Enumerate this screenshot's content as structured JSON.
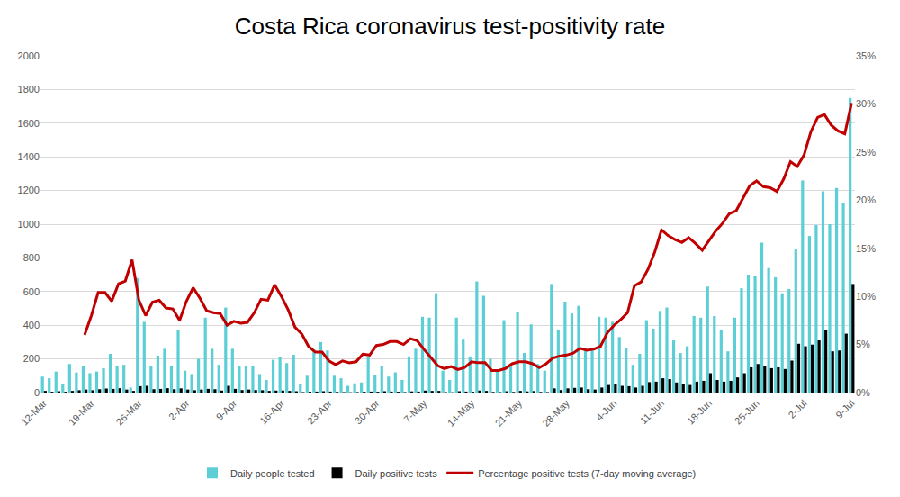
{
  "chart_data": {
    "type": "bar",
    "title": "Costa Rica coronavirus test-positivity rate",
    "categories": [
      "12-Mar",
      null,
      null,
      null,
      null,
      null,
      null,
      "19-Mar",
      null,
      null,
      null,
      null,
      null,
      null,
      "26-Mar",
      null,
      null,
      null,
      null,
      null,
      null,
      "2-Apr",
      null,
      null,
      null,
      null,
      null,
      null,
      "9-Apr",
      null,
      null,
      null,
      null,
      null,
      null,
      "16-Apr",
      null,
      null,
      null,
      null,
      null,
      null,
      "23-Apr",
      null,
      null,
      null,
      null,
      null,
      null,
      "30-Apr",
      null,
      null,
      null,
      null,
      null,
      null,
      "7-May",
      null,
      null,
      null,
      null,
      null,
      null,
      "14-May",
      null,
      null,
      null,
      null,
      null,
      null,
      "21-May",
      null,
      null,
      null,
      null,
      null,
      null,
      "28-May",
      null,
      null,
      null,
      null,
      null,
      null,
      "4-Jun",
      null,
      null,
      null,
      null,
      null,
      null,
      "11-Jun",
      null,
      null,
      null,
      null,
      null,
      null,
      "18-Jun",
      null,
      null,
      null,
      null,
      null,
      null,
      "25-Jun",
      null,
      null,
      null,
      null,
      null,
      null,
      "2-Jul",
      null,
      null,
      null,
      null,
      null,
      null,
      "9-Jul"
    ],
    "series": [
      {
        "name": "Daily people tested",
        "type": "bar",
        "color": "#5ccfd6",
        "values": [
          95,
          85,
          125,
          50,
          170,
          120,
          155,
          115,
          125,
          145,
          230,
          160,
          165,
          30,
          680,
          420,
          155,
          220,
          260,
          160,
          370,
          130,
          110,
          200,
          445,
          260,
          165,
          505,
          260,
          155,
          155,
          155,
          110,
          75,
          195,
          210,
          175,
          225,
          50,
          100,
          255,
          300,
          250,
          100,
          85,
          40,
          55,
          60,
          215,
          105,
          160,
          95,
          120,
          75,
          215,
          260,
          450,
          445,
          590,
          130,
          75,
          445,
          315,
          215,
          660,
          575,
          200,
          130,
          430,
          160,
          480,
          235,
          405,
          170,
          130,
          645,
          375,
          540,
          470,
          515,
          260,
          250,
          450,
          445,
          420,
          330,
          265,
          165,
          230,
          430,
          380,
          485,
          505,
          310,
          235,
          275,
          455,
          445,
          630,
          455,
          375,
          245,
          445,
          620,
          700,
          690,
          890,
          740,
          685,
          590,
          615,
          850,
          1260,
          930,
          995,
          1195,
          1000,
          1215,
          1125,
          1750
        ]
      },
      {
        "name": "Daily positive tests",
        "type": "bar",
        "color": "#000000",
        "values": [
          10,
          5,
          8,
          5,
          10,
          14,
          18,
          14,
          20,
          24,
          22,
          26,
          18,
          10,
          38,
          40,
          20,
          22,
          26,
          20,
          25,
          18,
          14,
          18,
          22,
          20,
          12,
          40,
          22,
          15,
          18,
          15,
          14,
          10,
          12,
          12,
          10,
          8,
          3,
          5,
          6,
          8,
          6,
          4,
          3,
          2,
          3,
          5,
          6,
          5,
          8,
          6,
          5,
          3,
          7,
          6,
          12,
          10,
          10,
          3,
          2,
          8,
          6,
          5,
          12,
          10,
          4,
          3,
          8,
          4,
          10,
          7,
          9,
          4,
          3,
          25,
          15,
          25,
          28,
          30,
          20,
          18,
          30,
          45,
          50,
          40,
          38,
          30,
          40,
          62,
          65,
          85,
          80,
          60,
          50,
          45,
          65,
          70,
          115,
          75,
          65,
          70,
          90,
          115,
          150,
          170,
          160,
          145,
          150,
          140,
          190,
          290,
          275,
          285,
          310,
          370,
          245,
          250,
          350,
          645
        ]
      },
      {
        "name": "Percentage positive tests (7-day moving average)",
        "type": "line",
        "axis": "y2",
        "color": "#c00000",
        "values": [
          null,
          null,
          null,
          null,
          null,
          null,
          6.0,
          8.0,
          10.4,
          10.4,
          9.5,
          11.3,
          11.6,
          13.8,
          9.6,
          8.0,
          9.4,
          9.6,
          8.8,
          8.7,
          7.5,
          9.5,
          10.9,
          9.8,
          8.5,
          8.3,
          8.2,
          7.0,
          7.4,
          7.2,
          7.3,
          8.3,
          9.7,
          9.6,
          11.2,
          10.0,
          8.6,
          6.8,
          6.1,
          4.8,
          4.2,
          4.2,
          3.3,
          2.9,
          3.3,
          3.1,
          3.2,
          4.0,
          3.9,
          4.9,
          5.0,
          5.3,
          5.3,
          5.0,
          5.6,
          5.4,
          4.5,
          3.6,
          2.8,
          2.5,
          2.7,
          2.4,
          2.6,
          3.2,
          3.1,
          3.1,
          2.3,
          2.3,
          2.5,
          3.0,
          3.2,
          3.2,
          3.0,
          2.6,
          3.0,
          3.6,
          3.8,
          3.9,
          4.1,
          4.6,
          4.4,
          4.5,
          4.8,
          6.2,
          7.0,
          7.6,
          8.3,
          11.1,
          11.5,
          12.8,
          14.6,
          16.9,
          16.3,
          15.9,
          15.6,
          16.1,
          15.5,
          14.8,
          15.8,
          16.8,
          17.6,
          18.6,
          18.9,
          20.2,
          21.5,
          22.0,
          21.4,
          21.3,
          20.9,
          22.2,
          24.0,
          23.5,
          24.7,
          27.1,
          28.6,
          28.9,
          27.8,
          27.2,
          26.9,
          30.1
        ]
      }
    ],
    "ylim": [
      0,
      2000
    ],
    "yticks": [
      0,
      200,
      400,
      600,
      800,
      1000,
      1200,
      1400,
      1600,
      1800,
      2000
    ],
    "y2lim": [
      0,
      35
    ],
    "y2ticks": [
      {
        "value": 0,
        "label": "0%"
      },
      {
        "value": 5,
        "label": "5%"
      },
      {
        "value": 10,
        "label": "10%"
      },
      {
        "value": 15,
        "label": "15%"
      },
      {
        "value": 20,
        "label": "20%"
      },
      {
        "value": 25,
        "label": "25%"
      },
      {
        "value": 30,
        "label": "30%"
      },
      {
        "value": 35,
        "label": "35%"
      }
    ],
    "grid": true,
    "legend": "bottom"
  }
}
